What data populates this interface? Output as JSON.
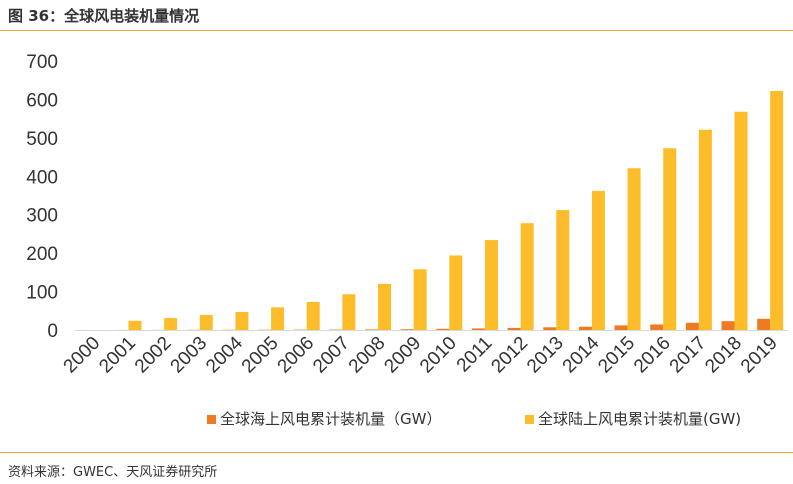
{
  "figure": {
    "title": "图 36：全球风电装机量情况",
    "source": "资料来源：GWEC、天风证券研究所"
  },
  "colors": {
    "offshore": "#ee7a22",
    "onshore": "#fdbd2a",
    "rule": "#f0a040"
  },
  "chart_data": {
    "type": "bar",
    "categories": [
      "2000",
      "2001",
      "2002",
      "2003",
      "2004",
      "2005",
      "2006",
      "2007",
      "2008",
      "2009",
      "2010",
      "2011",
      "2012",
      "2013",
      "2014",
      "2015",
      "2016",
      "2017",
      "2018",
      "2019"
    ],
    "series": [
      {
        "name": "全球海上风电累计装机量（GW）",
        "values": [
          0.1,
          0.2,
          0.3,
          0.5,
          0.6,
          0.7,
          0.9,
          1.1,
          1.5,
          2,
          3.1,
          4.1,
          5.4,
          7,
          8.5,
          12,
          14.4,
          18.8,
          23,
          29.1
        ]
      },
      {
        "name": "全球陆上风电累计装机量(GW)",
        "values": [
          0,
          24,
          31,
          39,
          47,
          59,
          73,
          93,
          120,
          158,
          194,
          234,
          278,
          312,
          362,
          421,
          473,
          521,
          568,
          622
        ]
      }
    ],
    "yticks": [
      0,
      100,
      200,
      300,
      400,
      500,
      600,
      700
    ],
    "ylim": [
      0,
      700
    ],
    "xlabel": "",
    "ylabel": "",
    "grid": false,
    "legend_position": "bottom"
  }
}
